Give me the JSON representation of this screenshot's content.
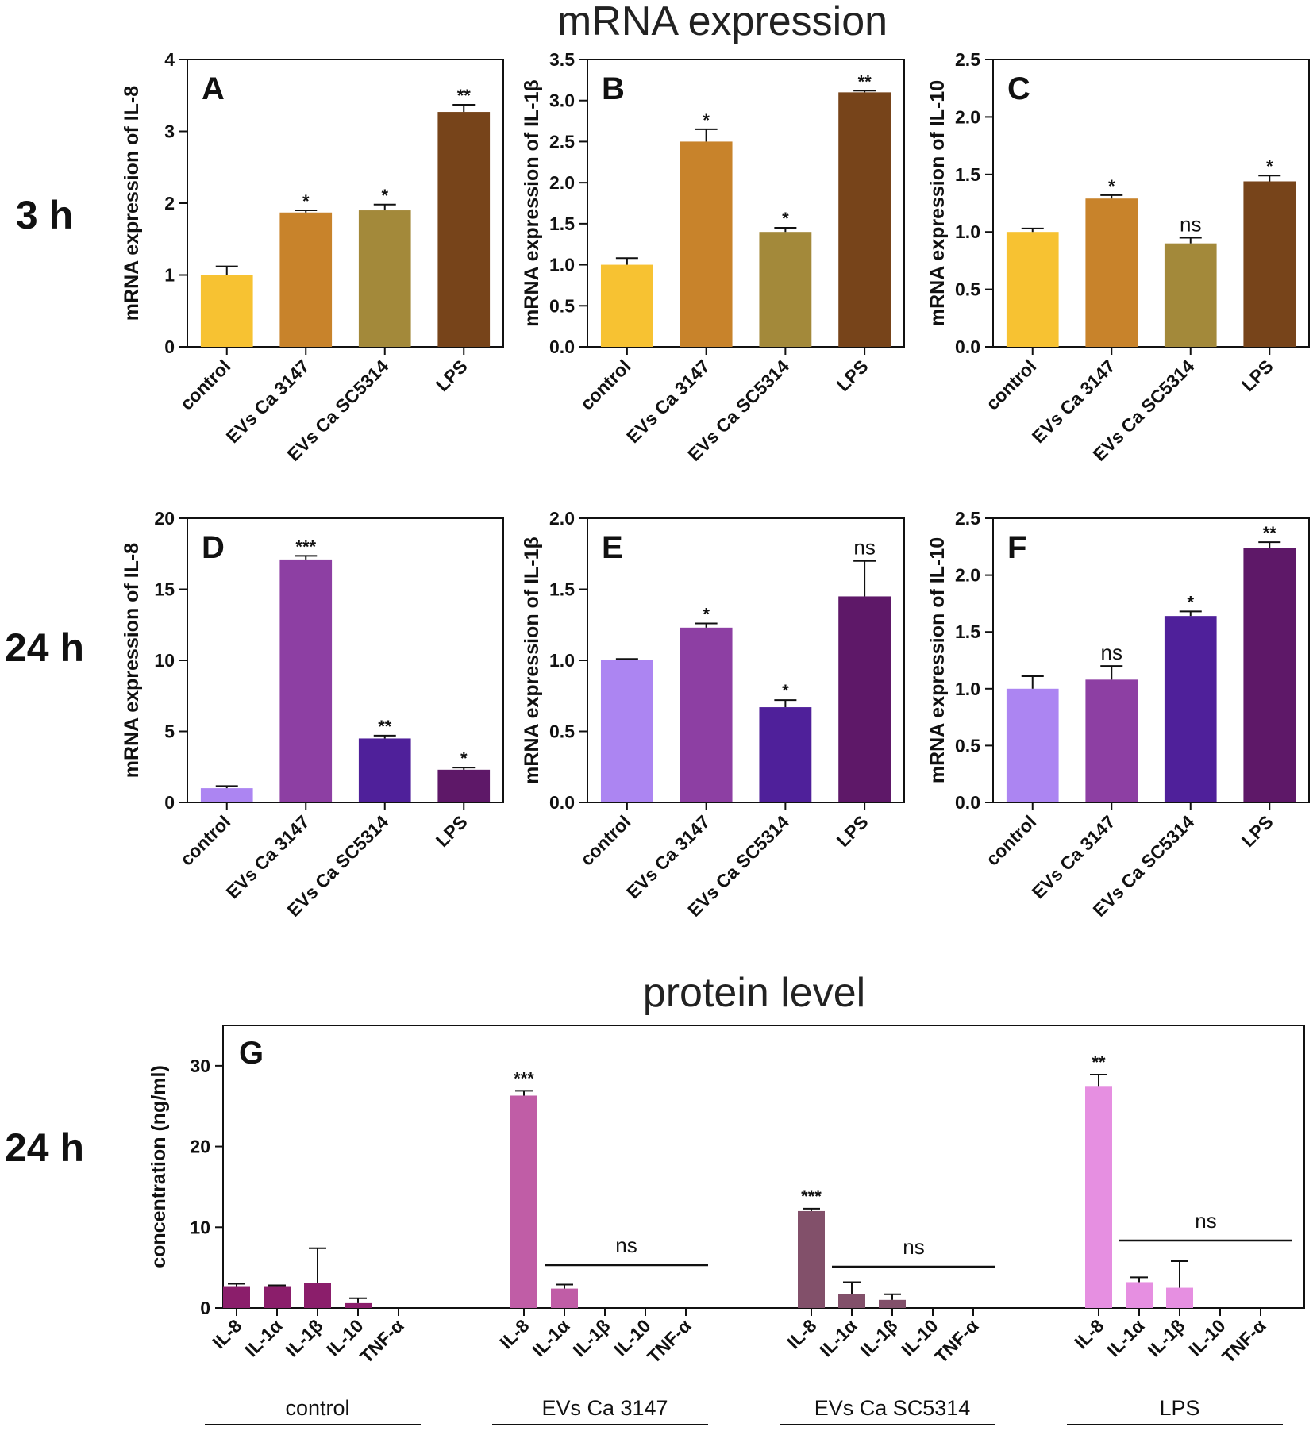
{
  "titles": {
    "mrna": "mRNA expression",
    "protein": "protein level"
  },
  "row_labels": [
    "3 h",
    "24 h",
    "24 h"
  ],
  "chart_data": [
    {
      "id": "A",
      "type": "bar",
      "row": 0,
      "col": 0,
      "ylabel": "mRNA expression of IL-8",
      "ylim": [
        0,
        4
      ],
      "yticks": [
        0,
        1,
        2,
        3,
        4
      ],
      "decimals": 0,
      "categories": [
        "control",
        "EVs Ca 3147",
        "EVs Ca SC5314",
        "LPS"
      ],
      "values": [
        1.0,
        1.87,
        1.9,
        3.27
      ],
      "errors": [
        0.12,
        0.03,
        0.08,
        0.1
      ],
      "significance": [
        "",
        "*",
        "*",
        "**"
      ],
      "colors": [
        "#F7C232",
        "#C8832B",
        "#A3893A",
        "#77441A"
      ]
    },
    {
      "id": "B",
      "type": "bar",
      "row": 0,
      "col": 1,
      "ylabel": "mRNA expression of IL-1β",
      "ylim": [
        0,
        3.5
      ],
      "yticks": [
        0,
        0.5,
        1.0,
        1.5,
        2.0,
        2.5,
        3.0,
        3.5
      ],
      "decimals": 1,
      "categories": [
        "control",
        "EVs Ca 3147",
        "EVs Ca SC5314",
        "LPS"
      ],
      "values": [
        1.0,
        2.5,
        1.4,
        3.1
      ],
      "errors": [
        0.08,
        0.15,
        0.05,
        0.02
      ],
      "significance": [
        "",
        "*",
        "*",
        "**"
      ],
      "colors": [
        "#F7C232",
        "#C8832B",
        "#A3893A",
        "#77441A"
      ]
    },
    {
      "id": "C",
      "type": "bar",
      "row": 0,
      "col": 2,
      "ylabel": "mRNA expression of IL-10",
      "ylim": [
        0,
        2.5
      ],
      "yticks": [
        0,
        0.5,
        1.0,
        1.5,
        2.0,
        2.5
      ],
      "decimals": 1,
      "categories": [
        "control",
        "EVs Ca 3147",
        "EVs Ca SC5314",
        "LPS"
      ],
      "values": [
        1.0,
        1.29,
        0.9,
        1.44
      ],
      "errors": [
        0.03,
        0.03,
        0.05,
        0.05
      ],
      "significance": [
        "",
        "*",
        "ns",
        "*"
      ],
      "colors": [
        "#F7C232",
        "#C8832B",
        "#A3893A",
        "#77441A"
      ]
    },
    {
      "id": "D",
      "type": "bar",
      "row": 1,
      "col": 0,
      "ylabel": "mRNA expression of IL-8",
      "ylim": [
        0,
        20
      ],
      "yticks": [
        0,
        5,
        10,
        15,
        20
      ],
      "decimals": 0,
      "categories": [
        "control",
        "EVs Ca 3147",
        "EVs Ca SC5314",
        "LPS"
      ],
      "values": [
        1.0,
        17.1,
        4.5,
        2.3
      ],
      "errors": [
        0.15,
        0.25,
        0.2,
        0.15
      ],
      "significance": [
        "",
        "***",
        "**",
        "*"
      ],
      "colors": [
        "#AC85F2",
        "#8D3FA3",
        "#4F209A",
        "#5E1868"
      ]
    },
    {
      "id": "E",
      "type": "bar",
      "row": 1,
      "col": 1,
      "ylabel": "mRNA expression of IL-1β",
      "ylim": [
        0,
        2.0
      ],
      "yticks": [
        0,
        0.5,
        1.0,
        1.5,
        2.0
      ],
      "decimals": 1,
      "categories": [
        "control",
        "EVs Ca 3147",
        "EVs Ca SC5314",
        "LPS"
      ],
      "values": [
        1.0,
        1.23,
        0.67,
        1.45
      ],
      "errors": [
        0.01,
        0.03,
        0.05,
        0.25
      ],
      "significance": [
        "",
        "*",
        "*",
        "ns"
      ],
      "colors": [
        "#AC85F2",
        "#8D3FA3",
        "#4F209A",
        "#5E1868"
      ]
    },
    {
      "id": "F",
      "type": "bar",
      "row": 1,
      "col": 2,
      "ylabel": "mRNA expression of IL-10",
      "ylim": [
        0,
        2.5
      ],
      "yticks": [
        0,
        0.5,
        1.0,
        1.5,
        2.0,
        2.5
      ],
      "decimals": 1,
      "categories": [
        "control",
        "EVs Ca 3147",
        "EVs Ca SC5314",
        "LPS"
      ],
      "values": [
        1.0,
        1.08,
        1.64,
        2.24
      ],
      "errors": [
        0.11,
        0.12,
        0.04,
        0.05
      ],
      "significance": [
        "",
        "ns",
        "*",
        "**"
      ],
      "colors": [
        "#AC85F2",
        "#8D3FA3",
        "#4F209A",
        "#5E1868"
      ]
    },
    {
      "id": "G",
      "type": "bar",
      "ylabel": "concentration (ng/ml)",
      "ylim": [
        0,
        35
      ],
      "yticks": [
        0,
        10,
        20,
        30
      ],
      "decimals": 0,
      "categories": [
        "IL-8",
        "IL-1α",
        "IL-1β",
        "IL-10",
        "TNF-α"
      ],
      "groups": [
        {
          "name": "control",
          "color": "#8B1E6B",
          "values": [
            2.7,
            2.7,
            3.1,
            0.6,
            0
          ],
          "errors": [
            0.3,
            0.1,
            4.3,
            0.6,
            0
          ],
          "significance": "",
          "ns_label": ""
        },
        {
          "name": "EVs Ca 3147",
          "color": "#C05DA6",
          "values": [
            26.3,
            2.4,
            0,
            0,
            0
          ],
          "errors": [
            0.6,
            0.5,
            0,
            0,
            0
          ],
          "significance": "***",
          "ns_label": "ns"
        },
        {
          "name": "EVs Ca SC5314",
          "color": "#82506A",
          "values": [
            12.0,
            1.7,
            1.0,
            0,
            0
          ],
          "errors": [
            0.3,
            1.5,
            0.7,
            0,
            0
          ],
          "significance": "***",
          "ns_label": "ns"
        },
        {
          "name": "LPS",
          "color": "#E68FE1",
          "values": [
            27.5,
            3.2,
            2.5,
            0,
            0
          ],
          "errors": [
            1.4,
            0.6,
            3.3,
            0,
            0
          ],
          "significance": "**",
          "ns_label": "ns"
        }
      ]
    }
  ]
}
